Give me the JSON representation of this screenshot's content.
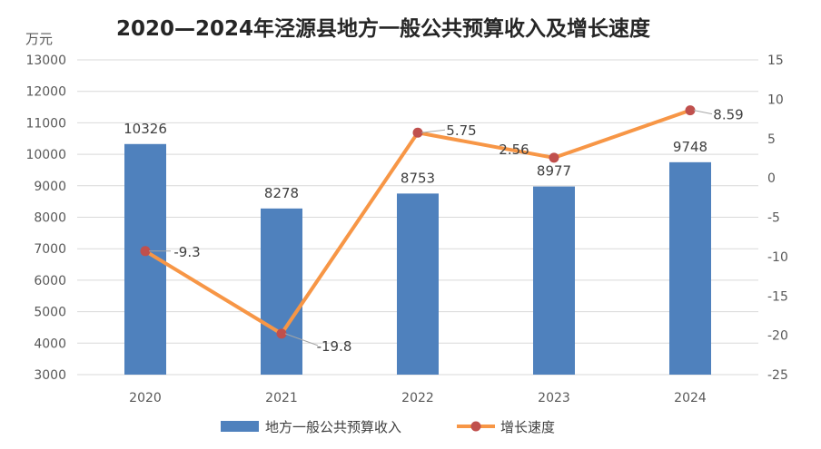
{
  "chart_data": {
    "type": "bar+line",
    "title": "2020—2024年泾源县地方一般公共预算收入及增长速度",
    "unit_label": "万元",
    "categories": [
      "2020",
      "2021",
      "2022",
      "2023",
      "2024"
    ],
    "series": [
      {
        "name": "地方一般公共预算收入",
        "type": "bar",
        "axis": "left",
        "color": "#4f81bd",
        "values": [
          10326,
          8278,
          8753,
          8977,
          9748
        ]
      },
      {
        "name": "增长速度",
        "type": "line",
        "axis": "right",
        "color": "#f79646",
        "marker_color": "#c0504d",
        "values": [
          -9.3,
          -19.8,
          5.75,
          2.56,
          8.59
        ]
      }
    ],
    "left_axis": {
      "min": 3000,
      "max": 13000,
      "step": 1000
    },
    "right_axis": {
      "min": -25,
      "max": 15,
      "step": 5
    },
    "grid": true,
    "legend_position": "bottom"
  }
}
